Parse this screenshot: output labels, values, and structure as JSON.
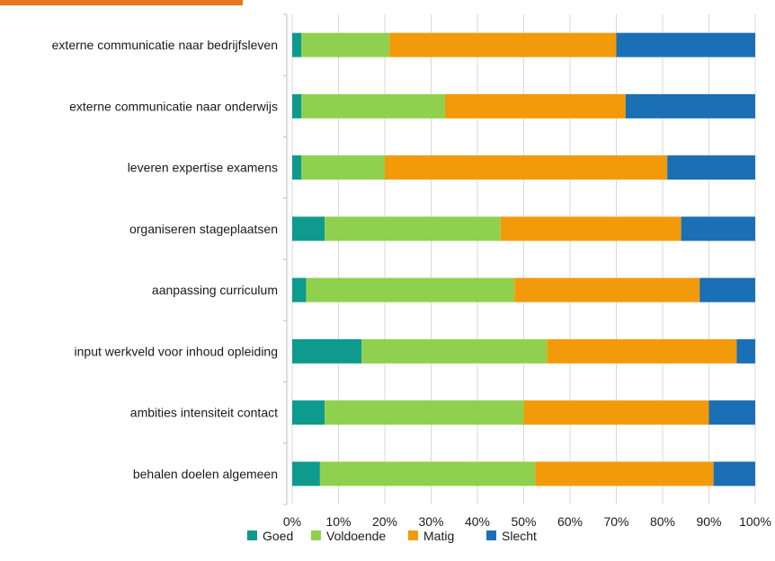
{
  "chart_data": {
    "type": "bar",
    "orientation": "horizontal",
    "stacked": "percent",
    "title": "",
    "xlabel": "",
    "ylabel": "",
    "categories": [
      "externe communicatie naar bedrijfsleven",
      "externe communicatie naar onderwijs",
      "leveren expertise examens",
      "organiseren stageplaatsen",
      "aanpassing curriculum",
      "input werkveld voor inhoud opleiding",
      "ambities intensiteit contact",
      "behalen doelen algemeen"
    ],
    "series": [
      {
        "name": "Goed",
        "color": "#0f9a8e",
        "values": [
          2,
          2,
          2,
          7,
          3,
          15,
          7,
          6
        ]
      },
      {
        "name": "Voldoende",
        "color": "#8fd14f",
        "values": [
          19,
          31,
          18,
          38,
          45,
          40,
          43,
          46.5
        ]
      },
      {
        "name": "Matig",
        "color": "#f39a0b",
        "values": [
          49,
          39,
          61,
          39,
          40,
          41,
          40,
          38.5
        ]
      },
      {
        "name": "Slecht",
        "color": "#1a6fb5",
        "values": [
          30,
          28,
          19,
          16,
          12,
          4,
          10,
          9
        ]
      }
    ],
    "xlim": [
      0,
      100
    ],
    "x_ticks": [
      "0%",
      "10%",
      "20%",
      "30%",
      "40%",
      "50%",
      "60%",
      "70%",
      "80%",
      "90%",
      "100%"
    ],
    "grid": true,
    "legend_position": "bottom"
  },
  "colors": {
    "accent_strip": "#e8761c",
    "gridline": "#d9d9d9",
    "axis": "#bfbfbf"
  }
}
